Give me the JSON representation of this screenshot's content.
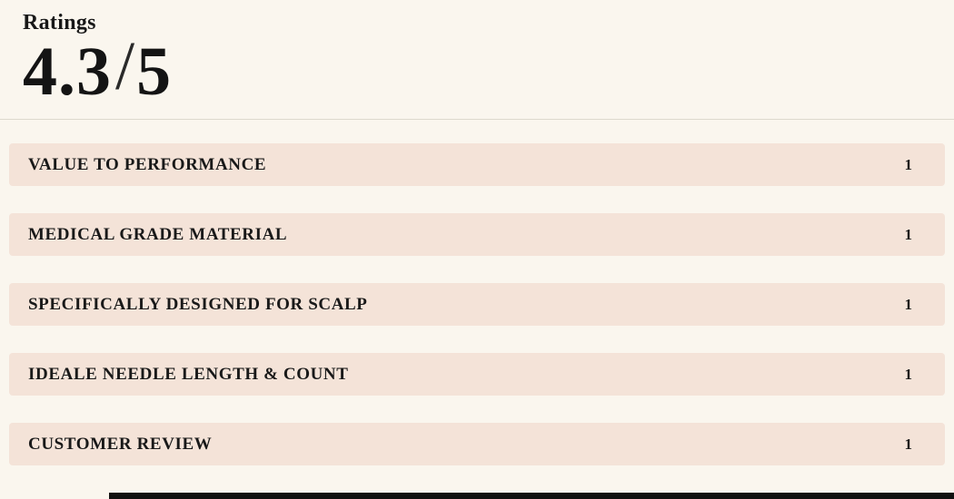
{
  "header": {
    "title": "Ratings",
    "score": "4.3",
    "separator": "/",
    "max": "5"
  },
  "rows": [
    {
      "label": "VALUE TO PERFORMANCE",
      "count": "1"
    },
    {
      "label": "MEDICAL GRADE MATERIAL",
      "count": "1"
    },
    {
      "label": "SPECIFICALLY DESIGNED FOR SCALP",
      "count": "1"
    },
    {
      "label": "IDEALE NEEDLE LENGTH & COUNT",
      "count": "1"
    },
    {
      "label": "CUSTOMER REVIEW",
      "count": "1"
    }
  ],
  "colors": {
    "page_background": "#faf6ee",
    "row_background": "#f4e3d8",
    "text": "#1a1a1a",
    "bottom_bar": "#101010"
  },
  "chart_data": {
    "type": "bar",
    "orientation": "horizontal",
    "title": "Ratings 4.3/5",
    "categories": [
      "VALUE TO PERFORMANCE",
      "MEDICAL GRADE MATERIAL",
      "SPECIFICALLY DESIGNED FOR SCALP",
      "IDEALE NEEDLE LENGTH & COUNT",
      "CUSTOMER REVIEW"
    ],
    "values": [
      1,
      1,
      1,
      1,
      1
    ],
    "xlabel": "",
    "ylabel": "",
    "legend_position": "none",
    "grid": false,
    "overall_rating": 4.3,
    "rating_max": 5
  }
}
